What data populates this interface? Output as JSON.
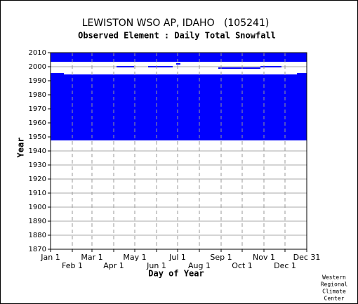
{
  "chart_data": {
    "type": "availability",
    "title": "LEWISTON WSO AP, IDAHO   (105241)",
    "subtitle": "Observed Element : Daily Total Snowfall",
    "x_label": "Day of Year",
    "y_label": "Year",
    "credit": [
      "Western",
      "Regional",
      "Climate",
      "Center"
    ],
    "color": "#0000ff",
    "xlim": [
      1,
      366
    ],
    "ylim": [
      1870,
      2010
    ],
    "xticks": [
      {
        "value": 1,
        "label": "Jan 1"
      },
      {
        "value": 32,
        "label": "Feb 1"
      },
      {
        "value": 60,
        "label": "Mar 1"
      },
      {
        "value": 91,
        "label": "Apr 1"
      },
      {
        "value": 121,
        "label": "May 1"
      },
      {
        "value": 152,
        "label": "Jun 1"
      },
      {
        "value": 182,
        "label": "Jul 1"
      },
      {
        "value": 213,
        "label": "Aug 1"
      },
      {
        "value": 244,
        "label": "Sep 1"
      },
      {
        "value": 274,
        "label": "Oct 1"
      },
      {
        "value": 305,
        "label": "Nov 1"
      },
      {
        "value": 335,
        "label": "Dec 1"
      },
      {
        "value": 366,
        "label": "Dec 31"
      }
    ],
    "yticks": [
      1870,
      1880,
      1890,
      1900,
      1910,
      1920,
      1930,
      1940,
      1950,
      1960,
      1970,
      1980,
      1990,
      2000,
      2010
    ],
    "blocks": [
      {
        "years": [
          1947.5,
          1994.5
        ],
        "days": [
          1,
          366
        ]
      },
      {
        "years": [
          2003.5,
          2010
        ],
        "days": [
          1,
          366
        ]
      },
      {
        "years": [
          1994.5,
          1995.5
        ],
        "days": [
          1,
          20
        ]
      },
      {
        "years": [
          1994.5,
          1995.5
        ],
        "days": [
          352,
          366
        ]
      },
      {
        "years": [
          1999.5,
          2000.5
        ],
        "days": [
          95,
          120
        ]
      },
      {
        "years": [
          1999.5,
          2000.5
        ],
        "days": [
          140,
          175
        ]
      },
      {
        "years": [
          1998.5,
          1999.5
        ],
        "days": [
          240,
          300
        ]
      },
      {
        "years": [
          1999.5,
          2000.5
        ],
        "days": [
          300,
          330
        ]
      },
      {
        "years": [
          2001.5,
          2002.5
        ],
        "days": [
          180,
          186
        ]
      }
    ]
  }
}
